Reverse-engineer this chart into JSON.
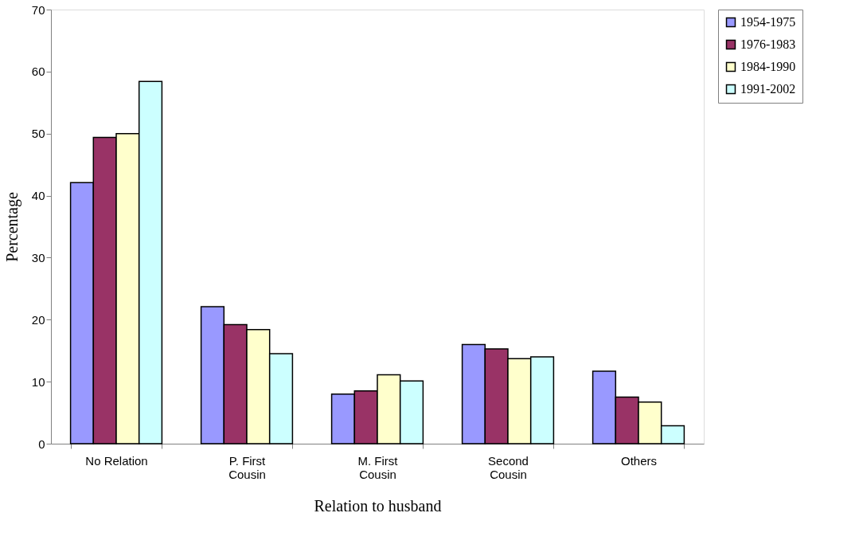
{
  "chart_data": {
    "type": "bar",
    "xlabel": "Relation to husband",
    "ylabel": "Percentage",
    "categories": [
      "No Relation",
      "P. First\nCousin",
      "M. First\nCousin",
      "Second\nCousin",
      "Others"
    ],
    "series": [
      {
        "name": "1954-1975",
        "color": "#9999ff",
        "values": [
          42.1,
          22.1,
          8.0,
          16.0,
          11.7
        ]
      },
      {
        "name": "1976-1983",
        "color": "#993366",
        "values": [
          49.4,
          19.2,
          8.5,
          15.3,
          7.5
        ]
      },
      {
        "name": "1984-1990",
        "color": "#ffffcc",
        "values": [
          50.0,
          18.4,
          11.1,
          13.7,
          6.7
        ]
      },
      {
        "name": "1991-2002",
        "color": "#ccffff",
        "values": [
          58.4,
          14.5,
          10.1,
          14.0,
          2.9
        ]
      }
    ],
    "ylim": [
      0,
      70
    ],
    "yticks": [
      0,
      10,
      20,
      30,
      40,
      50,
      60,
      70
    ],
    "grid": false,
    "legend": "right"
  }
}
